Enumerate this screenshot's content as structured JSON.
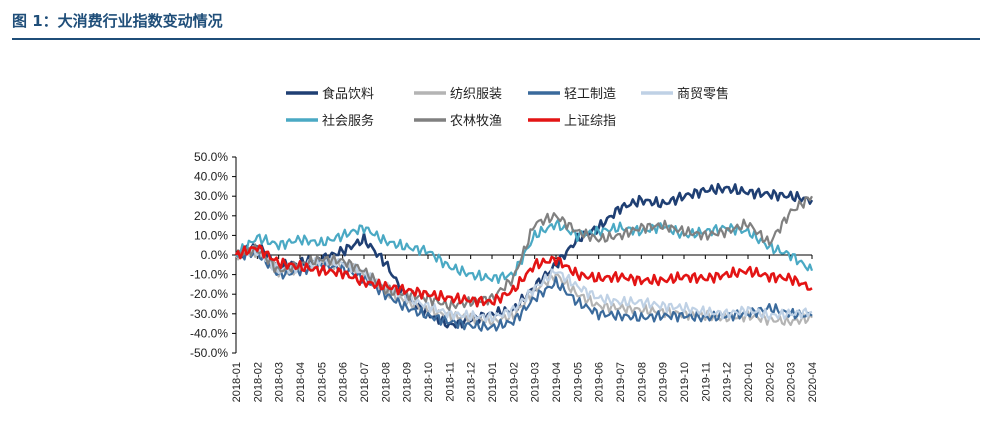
{
  "header": {
    "title": "图 1：大消费行业指数变动情况"
  },
  "chart_data": {
    "type": "line",
    "title": "",
    "xlabel": "",
    "ylabel": "",
    "ylim": [
      -50,
      50
    ],
    "yticks": [
      "50.0%",
      "40.0%",
      "30.0%",
      "20.0%",
      "10.0%",
      "0.0%",
      "-10.0%",
      "-20.0%",
      "-30.0%",
      "-40.0%",
      "-50.0%"
    ],
    "ytick_values": [
      50,
      40,
      30,
      20,
      10,
      0,
      -10,
      -20,
      -30,
      -40,
      -50
    ],
    "x": [
      "2018-01",
      "2018-02",
      "2018-03",
      "2018-04",
      "2018-05",
      "2018-06",
      "2018-07",
      "2018-08",
      "2018-09",
      "2018-10",
      "2018-11",
      "2018-12",
      "2019-01",
      "2019-02",
      "2019-03",
      "2019-04",
      "2019-05",
      "2019-06",
      "2019-07",
      "2019-08",
      "2019-09",
      "2019-10",
      "2019-11",
      "2019-12",
      "2020-01",
      "2020-02",
      "2020-03",
      "2020-04"
    ],
    "grid": false,
    "legend_position": "top",
    "series": [
      {
        "name": "食品饮料",
        "color": "#1f3f73",
        "values": [
          0,
          5,
          -6,
          -4,
          -2,
          2,
          8,
          -4,
          -22,
          -30,
          -36,
          -33,
          -30,
          -28,
          -16,
          -5,
          8,
          14,
          24,
          28,
          26,
          30,
          33,
          34,
          32,
          31,
          30,
          28
        ]
      },
      {
        "name": "纺织服装",
        "color": "#b4b4b4",
        "values": [
          0,
          2,
          -9,
          -7,
          -4,
          -5,
          -10,
          -18,
          -24,
          -28,
          -31,
          -32,
          -34,
          -31,
          -18,
          -10,
          -20,
          -26,
          -27,
          -28,
          -29,
          -30,
          -31,
          -32,
          -31,
          -33,
          -34,
          -32
        ]
      },
      {
        "name": "轻工制造",
        "color": "#3a6a9c",
        "values": [
          0,
          1,
          -10,
          -8,
          -5,
          -7,
          -12,
          -20,
          -27,
          -31,
          -34,
          -36,
          -37,
          -34,
          -22,
          -14,
          -24,
          -30,
          -31,
          -32,
          -31,
          -31,
          -32,
          -31,
          -30,
          -27,
          -30,
          -31
        ]
      },
      {
        "name": "商贸零售",
        "color": "#bfd1e5",
        "values": [
          0,
          2,
          -8,
          -6,
          -3,
          -4,
          -9,
          -16,
          -22,
          -26,
          -30,
          -31,
          -32,
          -28,
          -17,
          -8,
          -16,
          -22,
          -24,
          -24,
          -26,
          -27,
          -29,
          -30,
          -28,
          -31,
          -30,
          -29
        ]
      },
      {
        "name": "社会服务",
        "color": "#4aa9c4",
        "values": [
          0,
          9,
          5,
          8,
          6,
          10,
          14,
          7,
          4,
          2,
          -6,
          -10,
          -12,
          -10,
          10,
          16,
          10,
          12,
          14,
          12,
          15,
          10,
          12,
          14,
          12,
          4,
          0,
          -8
        ]
      },
      {
        "name": "农林牧渔",
        "color": "#808080",
        "values": [
          0,
          3,
          -8,
          -5,
          -2,
          -3,
          -8,
          -18,
          -20,
          -22,
          -26,
          -24,
          -22,
          -12,
          16,
          20,
          12,
          8,
          10,
          14,
          15,
          12,
          10,
          12,
          16,
          6,
          22,
          30
        ]
      },
      {
        "name": "上证综指",
        "color": "#e31414",
        "values": [
          0,
          4,
          -4,
          -6,
          -8,
          -9,
          -14,
          -16,
          -18,
          -20,
          -22,
          -23,
          -24,
          -18,
          -5,
          -2,
          -10,
          -12,
          -11,
          -13,
          -13,
          -11,
          -12,
          -10,
          -8,
          -11,
          -12,
          -17
        ]
      }
    ]
  }
}
